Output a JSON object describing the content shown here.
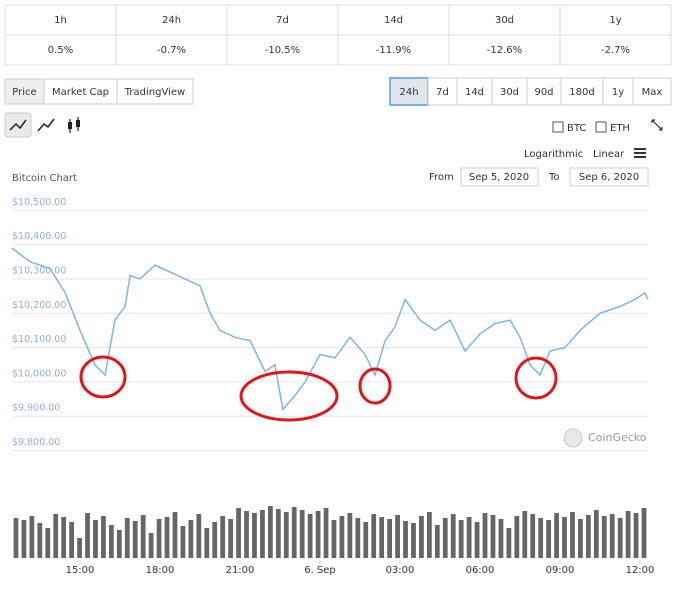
{
  "table": {
    "headers": [
      "1h",
      "24h",
      "7d",
      "14d",
      "30d",
      "1y"
    ],
    "values": [
      "0.5%",
      "-0.7%",
      "-10.5%",
      "-11.9%",
      "-12.6%",
      "-2.7%"
    ]
  },
  "tabs": [
    "Price",
    "Market Cap",
    "TradingView"
  ],
  "active_tab": 0,
  "ranges": [
    "24h",
    "7d",
    "14d",
    "30d",
    "90d",
    "180d",
    "1y",
    "Max"
  ],
  "active_range": 0,
  "coins": [
    "BTC",
    "ETH"
  ],
  "scales": [
    "Logarithmic",
    "Linear"
  ],
  "date_range": {
    "from_label": "From",
    "from": "Sep 5, 2020",
    "to_label": "To",
    "to": "Sep 6, 2020"
  },
  "watermark": "CoinGecko",
  "chart_data": {
    "type": "line",
    "title": "Bitcoin Chart",
    "x": [
      12.45,
      13.13,
      13.88,
      14.44,
      15,
      15.56,
      15.94,
      16.31,
      16.69,
      16.88,
      17.25,
      17.81,
      18.38,
      18.94,
      19.5,
      19.88,
      20.25,
      20.81,
      21.38,
      21.94,
      22.31,
      22.61,
      23.06,
      23.44,
      24,
      24.56,
      25.13,
      25.69,
      26.06,
      26.44,
      26.81,
      27.19,
      27.75,
      28.31,
      28.88,
      29.44,
      30,
      30.56,
      31.13,
      31.5,
      31.88,
      32.25,
      32.63,
      33.19,
      33.75,
      34.5,
      35.25,
      35.81,
      36.19,
      36.3
    ],
    "series": [
      {
        "color": "#7cb5ec",
        "values": [
          10390,
          10350,
          10330,
          10260,
          10150,
          10050,
          10020,
          10180,
          10220,
          10310,
          10300,
          10340,
          10320,
          10300,
          10280,
          10200,
          10150,
          10130,
          10120,
          10030,
          10050,
          9920,
          9960,
          10000,
          10080,
          10070,
          10130,
          10080,
          10020,
          10120,
          10160,
          10240,
          10180,
          10150,
          10180,
          10090,
          10140,
          10170,
          10180,
          10130,
          10050,
          10020,
          10090,
          10100,
          10150,
          10200,
          10220,
          10240,
          10260,
          10240
        ]
      }
    ],
    "xlim": [
      12.45,
      36.3
    ],
    "xticks": [
      {
        "value": 15,
        "label": "15:00"
      },
      {
        "value": 18,
        "label": "18:00"
      },
      {
        "value": 21,
        "label": "21:00"
      },
      {
        "value": 24,
        "label": "6. Sep"
      },
      {
        "value": 27,
        "label": "03:00"
      },
      {
        "value": 30,
        "label": "06:00"
      },
      {
        "value": 33,
        "label": "09:00"
      },
      {
        "value": 36,
        "label": "12:00"
      }
    ],
    "ylim": [
      9790,
      10530
    ],
    "yticks": [
      {
        "value": 9800,
        "label": "$9,800.00"
      },
      {
        "value": 9900,
        "label": "$9,900.00"
      },
      {
        "value": 10000,
        "label": "$10,000.00"
      },
      {
        "value": 10100,
        "label": "$10,100.00"
      },
      {
        "value": 10200,
        "label": "$10,200.00"
      },
      {
        "value": 10300,
        "label": "$10,300.00"
      },
      {
        "value": 10400,
        "label": "$10,400.00"
      },
      {
        "value": 10500,
        "label": "$10,500.00"
      }
    ],
    "grid": true,
    "volume": {
      "color": "#666666",
      "values": [
        40,
        38,
        42,
        35,
        30,
        44,
        41,
        36,
        20,
        45,
        38,
        42,
        33,
        28,
        40,
        37,
        43,
        25,
        39,
        41,
        46,
        32,
        38,
        44,
        30,
        36,
        42,
        39,
        50,
        47,
        45,
        48,
        52,
        49,
        46,
        51,
        48,
        44,
        47,
        50,
        38,
        42,
        45,
        40,
        36,
        44,
        41,
        39,
        43,
        37,
        35,
        42,
        46,
        33,
        40,
        44,
        38,
        41,
        36,
        45,
        43,
        39,
        30,
        42,
        47,
        44,
        40,
        38,
        45,
        41,
        46,
        39,
        43,
        48,
        42,
        44,
        40,
        47,
        45,
        50
      ]
    }
  }
}
